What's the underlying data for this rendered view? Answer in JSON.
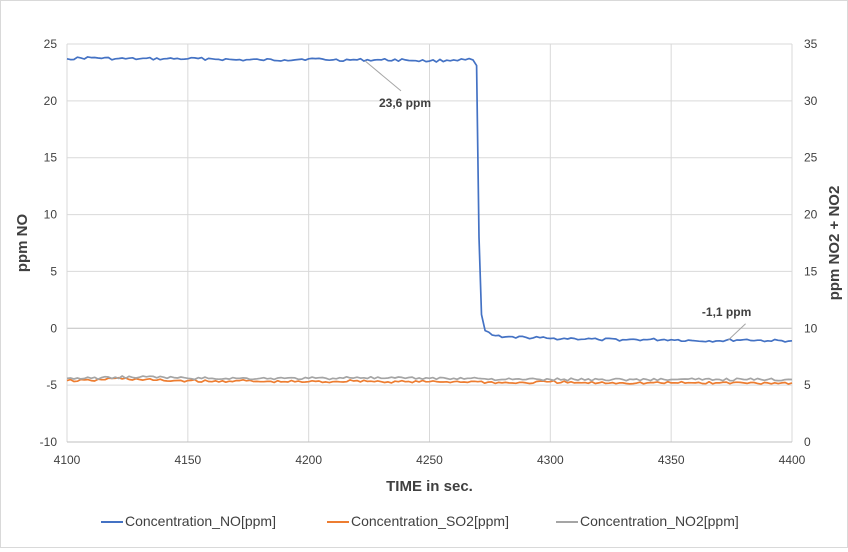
{
  "chart_data": {
    "type": "line",
    "title": "",
    "xlabel": "TIME in sec.",
    "ylabel": "ppm NO",
    "y2label": "ppm NO2 + NO2",
    "xlim": [
      4100,
      4400
    ],
    "ylim": [
      -10,
      25
    ],
    "y2lim": [
      0,
      35
    ],
    "x_ticks": [
      4100,
      4150,
      4200,
      4250,
      4300,
      4350,
      4400
    ],
    "y_ticks": [
      -10,
      -5,
      0,
      5,
      10,
      15,
      20,
      25
    ],
    "y2_ticks": [
      0,
      5,
      10,
      15,
      20,
      25,
      30,
      35
    ],
    "grid": true,
    "legend_position": "bottom",
    "series": [
      {
        "name": "Concentration_NO[ppm]",
        "axis": "left",
        "color": "#4472c4",
        "points": [
          [
            4100,
            23.7
          ],
          [
            4110,
            23.8
          ],
          [
            4120,
            23.7
          ],
          [
            4130,
            23.7
          ],
          [
            4140,
            23.7
          ],
          [
            4150,
            23.7
          ],
          [
            4160,
            23.7
          ],
          [
            4170,
            23.6
          ],
          [
            4180,
            23.6
          ],
          [
            4190,
            23.6
          ],
          [
            4200,
            23.7
          ],
          [
            4210,
            23.6
          ],
          [
            4220,
            23.6
          ],
          [
            4230,
            23.6
          ],
          [
            4240,
            23.6
          ],
          [
            4250,
            23.5
          ],
          [
            4260,
            23.6
          ],
          [
            4268,
            23.6
          ],
          [
            4269.5,
            23.1
          ],
          [
            4270.5,
            8
          ],
          [
            4271.5,
            1.2
          ],
          [
            4273,
            -0.2
          ],
          [
            4276,
            -0.6
          ],
          [
            4280,
            -0.8
          ],
          [
            4290,
            -0.8
          ],
          [
            4300,
            -0.9
          ],
          [
            4310,
            -0.9
          ],
          [
            4320,
            -1.0
          ],
          [
            4330,
            -1.0
          ],
          [
            4340,
            -1.0
          ],
          [
            4350,
            -1.0
          ],
          [
            4360,
            -1.1
          ],
          [
            4370,
            -1.1
          ],
          [
            4380,
            -1.0
          ],
          [
            4390,
            -1.1
          ],
          [
            4400,
            -1.1
          ]
        ]
      },
      {
        "name": "Concentration_SO2[ppm]",
        "axis": "right",
        "color": "#ed7d31",
        "points": [
          [
            4100,
            5.4
          ],
          [
            4110,
            5.4
          ],
          [
            4120,
            5.6
          ],
          [
            4130,
            5.5
          ],
          [
            4140,
            5.4
          ],
          [
            4150,
            5.4
          ],
          [
            4160,
            5.3
          ],
          [
            4170,
            5.4
          ],
          [
            4180,
            5.3
          ],
          [
            4190,
            5.3
          ],
          [
            4200,
            5.3
          ],
          [
            4210,
            5.3
          ],
          [
            4220,
            5.4
          ],
          [
            4230,
            5.3
          ],
          [
            4240,
            5.3
          ],
          [
            4250,
            5.3
          ],
          [
            4260,
            5.3
          ],
          [
            4270,
            5.3
          ],
          [
            4280,
            5.2
          ],
          [
            4290,
            5.2
          ],
          [
            4300,
            5.3
          ],
          [
            4310,
            5.2
          ],
          [
            4320,
            5.2
          ],
          [
            4330,
            5.2
          ],
          [
            4340,
            5.2
          ],
          [
            4350,
            5.2
          ],
          [
            4360,
            5.2
          ],
          [
            4370,
            5.2
          ],
          [
            4380,
            5.2
          ],
          [
            4390,
            5.2
          ],
          [
            4400,
            5.2
          ]
        ]
      },
      {
        "name": "Concentration_NO2[ppm]",
        "axis": "right",
        "color": "#a5a5a5",
        "points": [
          [
            4100,
            5.6
          ],
          [
            4110,
            5.6
          ],
          [
            4120,
            5.7
          ],
          [
            4130,
            5.7
          ],
          [
            4140,
            5.7
          ],
          [
            4150,
            5.6
          ],
          [
            4160,
            5.6
          ],
          [
            4170,
            5.6
          ],
          [
            4180,
            5.6
          ],
          [
            4190,
            5.6
          ],
          [
            4200,
            5.6
          ],
          [
            4210,
            5.6
          ],
          [
            4220,
            5.7
          ],
          [
            4230,
            5.6
          ],
          [
            4240,
            5.6
          ],
          [
            4250,
            5.6
          ],
          [
            4260,
            5.6
          ],
          [
            4270,
            5.6
          ],
          [
            4280,
            5.5
          ],
          [
            4290,
            5.5
          ],
          [
            4300,
            5.5
          ],
          [
            4310,
            5.5
          ],
          [
            4320,
            5.5
          ],
          [
            4330,
            5.5
          ],
          [
            4340,
            5.5
          ],
          [
            4350,
            5.5
          ],
          [
            4360,
            5.5
          ],
          [
            4370,
            5.5
          ],
          [
            4380,
            5.5
          ],
          [
            4390,
            5.5
          ],
          [
            4400,
            5.5
          ]
        ]
      }
    ],
    "annotations": [
      {
        "text": "23,6 ppm",
        "x": 4220,
        "y": 23.6
      },
      {
        "text": "-1,1 ppm",
        "x": 4375,
        "y": -1.1
      }
    ]
  }
}
